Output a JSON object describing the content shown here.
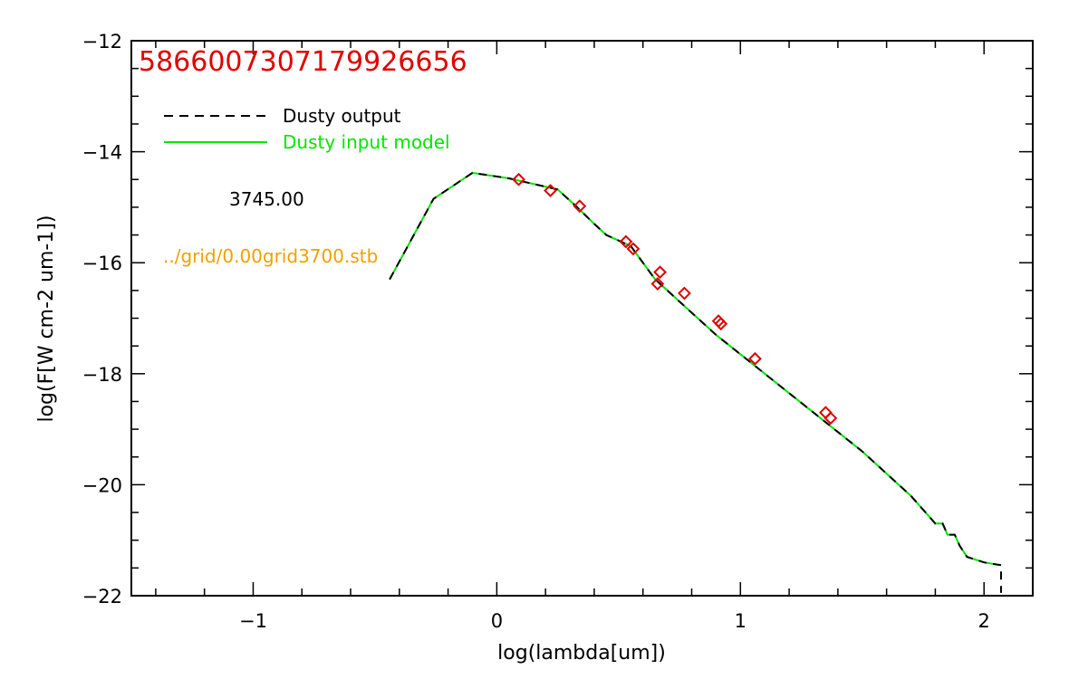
{
  "chart_data": {
    "type": "line",
    "title": "5866007307179926656",
    "xlabel": "log(lambda[um])",
    "ylabel": "log(F[W cm-2 um-1])",
    "xlim": [
      -1.5,
      2.2
    ],
    "ylim": [
      -22,
      -12
    ],
    "x_ticks": [
      -1,
      0,
      1,
      2
    ],
    "x_tick_labels": [
      "−1",
      "0",
      "1",
      "2"
    ],
    "y_ticks": [
      -22,
      -20,
      -18,
      -16,
      -14,
      -12
    ],
    "y_tick_labels": [
      "−22",
      "−20",
      "−18",
      "−16",
      "−14",
      "−12"
    ],
    "grid": false,
    "legend_position": "top-left",
    "series": [
      {
        "name": "Dusty output",
        "style": "dashed",
        "color": "#000000",
        "x": [
          -0.44,
          -0.26,
          -0.1,
          0.05,
          0.25,
          0.33,
          0.4,
          0.45,
          0.55,
          0.6,
          0.65,
          0.7,
          0.8,
          0.9,
          1.0,
          1.1,
          1.2,
          1.3,
          1.4,
          1.5,
          1.6,
          1.7,
          1.8,
          1.83,
          1.85,
          1.88,
          1.9,
          1.93,
          2.0,
          2.07,
          2.07
        ],
        "y": [
          -16.3,
          -14.85,
          -14.38,
          -14.48,
          -14.68,
          -15.0,
          -15.3,
          -15.5,
          -15.7,
          -16.0,
          -16.3,
          -16.5,
          -16.9,
          -17.3,
          -17.65,
          -18.0,
          -18.35,
          -18.7,
          -19.05,
          -19.4,
          -19.8,
          -20.2,
          -20.7,
          -20.7,
          -20.9,
          -20.9,
          -21.1,
          -21.3,
          -21.4,
          -21.45,
          -21.95
        ]
      },
      {
        "name": "Dusty input model",
        "style": "solid",
        "color": "#00e600",
        "x": [
          -0.44,
          -0.26,
          -0.1,
          0.05,
          0.25,
          0.33,
          0.4,
          0.45,
          0.55,
          0.6,
          0.65,
          0.7,
          0.8,
          0.9,
          1.0,
          1.1,
          1.2,
          1.3,
          1.4,
          1.5,
          1.6,
          1.7,
          1.8,
          1.83,
          1.85,
          1.88,
          1.9,
          1.93,
          2.0,
          2.07
        ],
        "y": [
          -16.3,
          -14.85,
          -14.38,
          -14.48,
          -14.68,
          -15.0,
          -15.3,
          -15.5,
          -15.7,
          -16.0,
          -16.3,
          -16.5,
          -16.9,
          -17.3,
          -17.65,
          -18.0,
          -18.35,
          -18.7,
          -19.05,
          -19.4,
          -19.8,
          -20.2,
          -20.7,
          -20.7,
          -20.9,
          -20.9,
          -21.1,
          -21.3,
          -21.4,
          -21.45
        ]
      }
    ],
    "observed_points": {
      "marker": "diamond",
      "color": "#e00000",
      "x": [
        0.09,
        0.22,
        0.34,
        0.53,
        0.56,
        0.66,
        0.67,
        0.77,
        0.91,
        0.92,
        1.06,
        1.35,
        1.37
      ],
      "y": [
        -14.5,
        -14.7,
        -14.98,
        -15.62,
        -15.75,
        -16.38,
        -16.17,
        -16.55,
        -17.05,
        -17.1,
        -17.73,
        -18.7,
        -18.8
      ]
    }
  },
  "annotations": {
    "object_id": "5866007307179926656",
    "object_id_color": "#e00000",
    "legend_output_label": "Dusty output",
    "legend_output_color": "#000000",
    "legend_model_label": "Dusty input model",
    "legend_model_color": "#00e600",
    "temperature": "3745.00",
    "grid_file": "../grid/0.00grid3700.stb",
    "grid_file_color": "#f0a000"
  }
}
